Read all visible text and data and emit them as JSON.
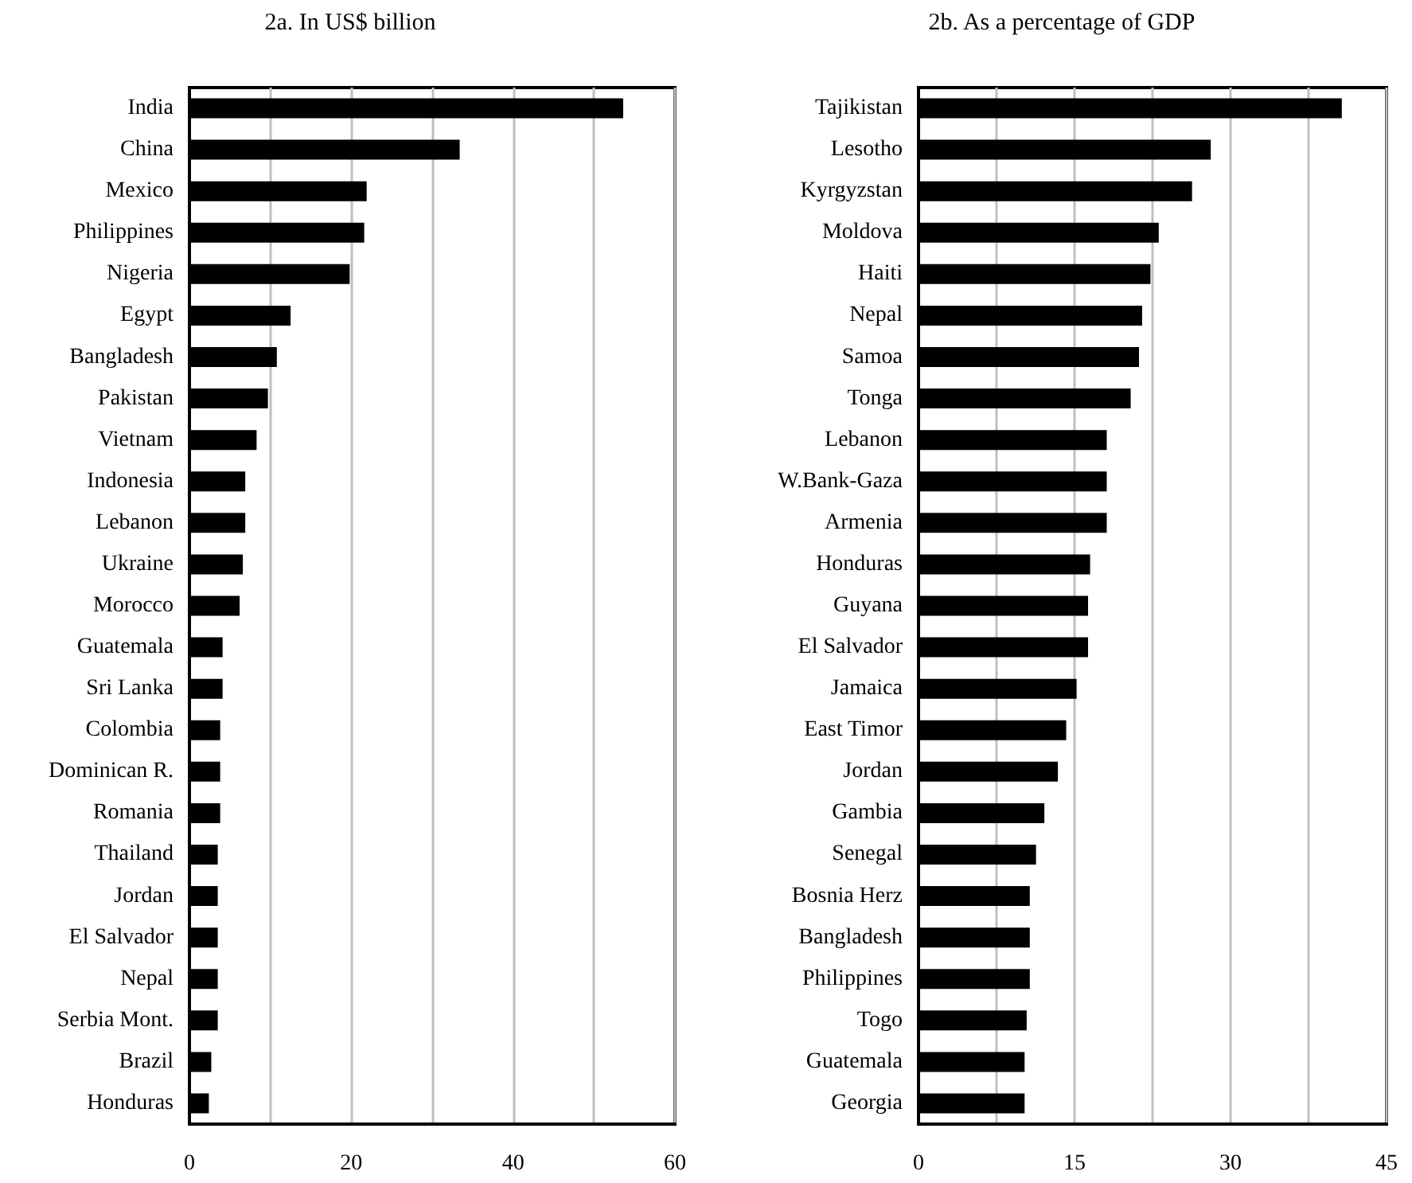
{
  "chart_data": [
    {
      "type": "bar",
      "orientation": "horizontal",
      "title": "2a. In US$ billion",
      "categories": [
        "India",
        "China",
        "Mexico",
        "Philippines",
        "Nigeria",
        "Egypt",
        "Bangladesh",
        "Pakistan",
        "Vietnam",
        "Indonesia",
        "Lebanon",
        "Ukraine",
        "Morocco",
        "Guatemala",
        "Sri Lanka",
        "Colombia",
        "Dominican R.",
        "Romania",
        "Thailand",
        "Jordan",
        "El Salvador",
        "Nepal",
        "Serbia Mont.",
        "Brazil",
        "Honduras"
      ],
      "values": [
        53.6,
        33.4,
        21.9,
        21.6,
        19.8,
        12.5,
        10.8,
        9.7,
        8.3,
        6.9,
        6.9,
        6.6,
        6.2,
        4.1,
        4.1,
        3.8,
        3.8,
        3.8,
        3.5,
        3.5,
        3.5,
        3.5,
        3.5,
        2.7,
        2.4
      ],
      "color": "#000000",
      "xlim": [
        0,
        60
      ],
      "xticks": [
        0,
        {
          "value": 10,
          "label": null
        },
        20,
        {
          "value": 30,
          "label": null
        },
        40,
        {
          "value": 50,
          "label": null
        },
        60
      ],
      "grid": "x"
    },
    {
      "type": "bar",
      "orientation": "horizontal",
      "title": "2b. As a percentage of GDP",
      "categories": [
        "Tajikistan",
        "Lesotho",
        "Kyrgyzstan",
        "Moldova",
        "Haiti",
        "Nepal",
        "Samoa",
        "Tonga",
        "Lebanon",
        "W.Bank-Gaza",
        "Armenia",
        "Honduras",
        "Guyana",
        "El Salvador",
        "Jamaica",
        "East Timor",
        "Jordan",
        "Gambia",
        "Senegal",
        "Bosnia Herz",
        "Bangladesh",
        "Philippines",
        "Togo",
        "Guatemala",
        "Georgia"
      ],
      "values": [
        40.7,
        28.1,
        26.3,
        23.1,
        22.3,
        21.5,
        21.2,
        20.4,
        18.1,
        18.1,
        18.1,
        16.5,
        16.3,
        16.3,
        15.2,
        14.2,
        13.4,
        12.1,
        11.3,
        10.7,
        10.7,
        10.7,
        10.4,
        10.2,
        10.2
      ],
      "color": "#000000",
      "xlim": [
        0,
        45
      ],
      "xticks": [
        0,
        {
          "value": 7.5,
          "label": null
        },
        15,
        {
          "value": 22.5,
          "label": null
        },
        30,
        {
          "value": 37.5,
          "label": null
        },
        45
      ],
      "grid": "x"
    }
  ]
}
